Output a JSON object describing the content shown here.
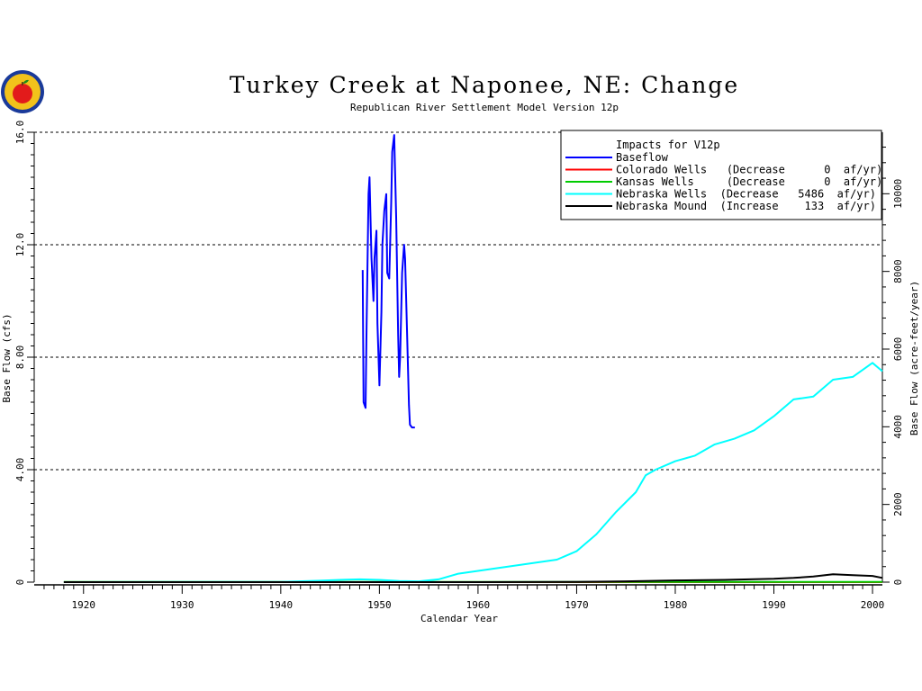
{
  "chart_data": {
    "type": "line",
    "title": "Turkey Creek at Naponee, NE: Change",
    "subtitle": "Republican River Settlement Model Version 12p",
    "xlabel": "Calendar Year",
    "ylabel_left": "Base Flow (cfs)",
    "ylabel_right": "Base Flow (acre-feet/year)",
    "xlim": [
      1915,
      2001
    ],
    "ylim_left": [
      0,
      16
    ],
    "ylim_right": [
      0,
      11583
    ],
    "x_ticks": [
      "1920",
      "1930",
      "1940",
      "1950",
      "1960",
      "1970",
      "1980",
      "1990",
      "2000"
    ],
    "y_ticks_left": [
      "0",
      "4.00",
      "8.00",
      "12.0",
      "16.0"
    ],
    "y_ticks_right": [
      "0",
      "2000",
      "4000",
      "6000",
      "8000",
      "10000"
    ],
    "grid_y": [
      4,
      8,
      12,
      16
    ],
    "legend_position": "top-right",
    "legend": {
      "header": "Impacts for V12p",
      "entries": [
        {
          "label": "Baseflow",
          "color": "#0000ff"
        },
        {
          "label": "Colorado Wells   (Decrease      0  af/yr)",
          "color": "#ff0000"
        },
        {
          "label": "Kansas Wells     (Decrease      0  af/yr)",
          "color": "#00cc00"
        },
        {
          "label": "Nebraska Wells  (Decrease   5486  af/yr)",
          "color": "#00ffff"
        },
        {
          "label": "Nebraska Mound  (Increase    133  af/yr)",
          "color": "#000000"
        }
      ]
    },
    "series": [
      {
        "name": "Baseflow",
        "color": "#0000ff",
        "x": [
          1948.3,
          1948.4,
          1948.6,
          1948.7,
          1948.9,
          1949.0,
          1949.2,
          1949.4,
          1949.5,
          1949.7,
          1949.8,
          1950.0,
          1950.2,
          1950.3,
          1950.5,
          1950.7,
          1950.8,
          1951.0,
          1951.2,
          1951.3,
          1951.5,
          1951.7,
          1951.9,
          1952.0,
          1952.1,
          1952.3,
          1952.5,
          1952.6,
          1952.8,
          1953.0,
          1953.1,
          1953.3,
          1953.5,
          1953.6
        ],
        "y": [
          11.1,
          6.4,
          6.2,
          9.0,
          13.8,
          14.4,
          11.5,
          10.0,
          11.5,
          12.5,
          9.2,
          7.0,
          9.6,
          12.0,
          13.2,
          13.8,
          11.0,
          10.8,
          13.5,
          15.3,
          15.9,
          13.0,
          8.8,
          7.3,
          8.0,
          11.0,
          12.0,
          11.5,
          9.0,
          6.3,
          5.6,
          5.5,
          5.5,
          5.5
        ]
      },
      {
        "name": "Colorado Wells",
        "color": "#ff0000",
        "x": [
          1918,
          2001
        ],
        "y": [
          0,
          0
        ]
      },
      {
        "name": "Kansas Wells",
        "color": "#00cc00",
        "x": [
          1918,
          2001
        ],
        "y": [
          0.01,
          0.01
        ]
      },
      {
        "name": "Nebraska Wells",
        "color": "#00ffff",
        "x": [
          1918,
          1940,
          1944,
          1946,
          1948,
          1950,
          1952,
          1954,
          1956,
          1958,
          1960,
          1962,
          1964,
          1966,
          1968,
          1970,
          1972,
          1974,
          1976,
          1977,
          1978,
          1980,
          1982,
          1984,
          1986,
          1988,
          1990,
          1992,
          1994,
          1996,
          1998,
          2000,
          2001
        ],
        "y": [
          0,
          0.01,
          0.05,
          0.08,
          0.1,
          0.08,
          0.04,
          0.03,
          0.1,
          0.3,
          0.4,
          0.5,
          0.6,
          0.7,
          0.8,
          1.1,
          1.7,
          2.5,
          3.2,
          3.8,
          4.0,
          4.3,
          4.5,
          4.9,
          5.1,
          5.4,
          5.9,
          6.5,
          6.6,
          7.2,
          7.3,
          7.8,
          7.5
        ]
      },
      {
        "name": "Nebraska Mound",
        "color": "#000000",
        "x": [
          1918,
          1960,
          1970,
          1975,
          1980,
          1985,
          1990,
          1992,
          1994,
          1996,
          1998,
          2000,
          2001
        ],
        "y": [
          0,
          0,
          0.01,
          0.03,
          0.06,
          0.08,
          0.12,
          0.15,
          0.2,
          0.28,
          0.25,
          0.22,
          0.15
        ]
      }
    ]
  }
}
